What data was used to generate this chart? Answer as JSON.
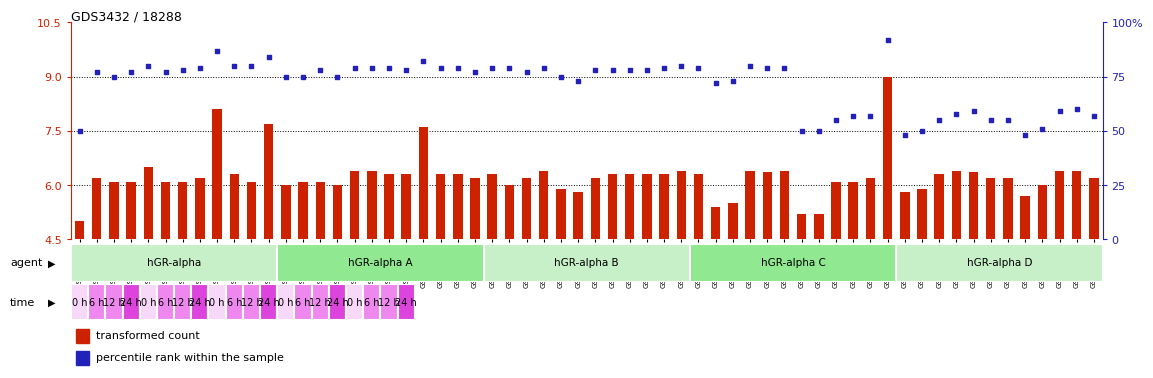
{
  "title": "GDS3432 / 18288",
  "sample_ids": [
    "GSM154259",
    "GSM154260",
    "GSM154261",
    "GSM154274",
    "GSM154275",
    "GSM154276",
    "GSM154289",
    "GSM154290",
    "GSM154291",
    "GSM154304",
    "GSM154305",
    "GSM154306",
    "GSM154262",
    "GSM154263",
    "GSM154264",
    "GSM154277",
    "GSM154278",
    "GSM154279",
    "GSM154292",
    "GSM154293",
    "GSM154294",
    "GSM154307",
    "GSM154308",
    "GSM154309",
    "GSM154265",
    "GSM154266",
    "GSM154267",
    "GSM154280",
    "GSM154281",
    "GSM154282",
    "GSM154295",
    "GSM154296",
    "GSM154297",
    "GSM154310",
    "GSM154311",
    "GSM154312",
    "GSM154268",
    "GSM154269",
    "GSM154270",
    "GSM154283",
    "GSM154284",
    "GSM154285",
    "GSM154298",
    "GSM154299",
    "GSM154300",
    "GSM154313",
    "GSM154314",
    "GSM154315",
    "GSM154271",
    "GSM154272",
    "GSM154273",
    "GSM154286",
    "GSM154287",
    "GSM154288",
    "GSM154301",
    "GSM154302",
    "GSM154303",
    "GSM154316",
    "GSM154317",
    "GSM154318"
  ],
  "bar_values": [
    5.0,
    6.2,
    6.1,
    6.1,
    6.5,
    6.1,
    6.1,
    6.2,
    8.1,
    6.3,
    6.1,
    7.7,
    6.0,
    6.1,
    6.1,
    6.0,
    6.4,
    6.4,
    6.3,
    6.3,
    7.6,
    6.3,
    6.3,
    6.2,
    6.3,
    6.0,
    6.2,
    6.4,
    5.9,
    5.8,
    6.2,
    6.3,
    6.3,
    6.3,
    6.3,
    6.4,
    6.3,
    5.4,
    5.5,
    6.4,
    6.35,
    6.4,
    5.2,
    5.2,
    6.1,
    6.1,
    6.2,
    9.0,
    5.8,
    5.9,
    6.3,
    6.4,
    6.35,
    6.2,
    6.2,
    5.7,
    6.0,
    6.4,
    6.4,
    6.2
  ],
  "dot_values_left": [
    50,
    77,
    75,
    77,
    80,
    77,
    78,
    79,
    87,
    80,
    80,
    84,
    75,
    75,
    78,
    75,
    79,
    79,
    79,
    78,
    82,
    79,
    79,
    77,
    79,
    79,
    77,
    79,
    75,
    73,
    78,
    78,
    78,
    78,
    79,
    80,
    79,
    72,
    73,
    80,
    79,
    79,
    50,
    50,
    55,
    57,
    57,
    92,
    48,
    50,
    55,
    58,
    59,
    55,
    55,
    48,
    51,
    59,
    60,
    57
  ],
  "agent_groups": [
    {
      "label": "hGR-alpha",
      "start": 0,
      "end": 12,
      "color": "#c8f0c8"
    },
    {
      "label": "hGR-alpha A",
      "start": 12,
      "end": 24,
      "color": "#90e890"
    },
    {
      "label": "hGR-alpha B",
      "start": 24,
      "end": 36,
      "color": "#c8f0c8"
    },
    {
      "label": "hGR-alpha C",
      "start": 36,
      "end": 48,
      "color": "#90e890"
    },
    {
      "label": "hGR-alpha D",
      "start": 48,
      "end": 60,
      "color": "#c8f0c8"
    }
  ],
  "time_blocks": [
    {
      "label": "0 h",
      "color": "#f8d8f8"
    },
    {
      "label": "6 h",
      "color": "#ee88ee"
    },
    {
      "label": "12 h",
      "color": "#ee88ee"
    },
    {
      "label": "24 h",
      "color": "#dd44dd"
    }
  ],
  "ylim_left": [
    4.5,
    10.5
  ],
  "ylim_right": [
    0,
    100
  ],
  "yticks_left": [
    4.5,
    6.0,
    7.5,
    9.0,
    10.5
  ],
  "yticks_right": [
    0,
    25,
    50,
    75,
    100
  ],
  "hline_values": [
    6.0,
    7.5,
    9.0
  ],
  "bar_color": "#cc2200",
  "dot_color": "#2222bb",
  "bar_width": 0.55
}
